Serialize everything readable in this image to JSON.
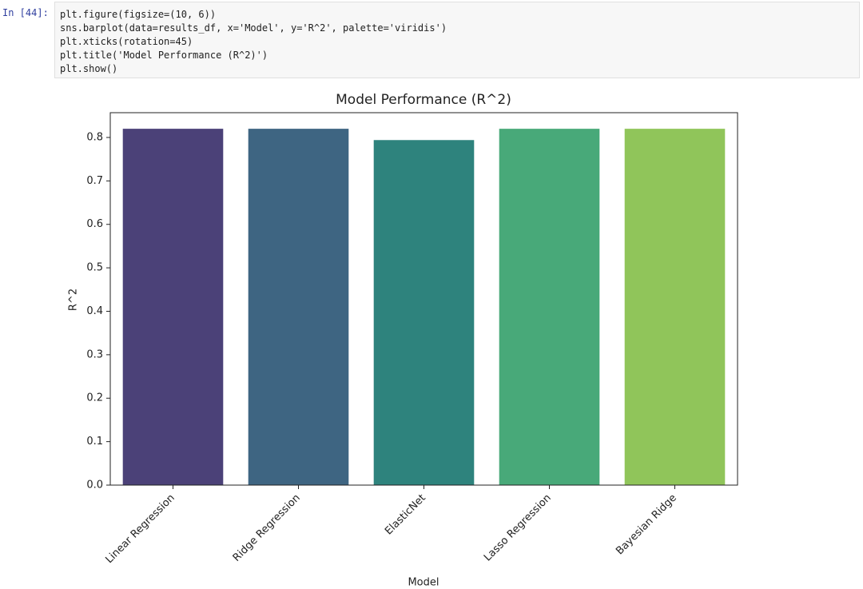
{
  "cell": {
    "prompt": "In [44]:",
    "code": [
      "plt.figure(figsize=(10, 6))",
      "sns.barplot(data=results_df, x='Model', y='R^2', palette='viridis')",
      "plt.xticks(rotation=45)",
      "plt.title('Model Performance (R^2)')",
      "plt.show()"
    ]
  },
  "chart_data": {
    "type": "bar",
    "title": "Model Performance (R^2)",
    "x_label": "Model",
    "y_label": "R^2",
    "categories": [
      "Linear Regression",
      "Ridge Regression",
      "ElasticNet",
      "Lasso Regression",
      "Bayesian Ridge"
    ],
    "values": [
      0.82,
      0.82,
      0.794,
      0.82,
      0.82
    ],
    "colors": [
      "#4b4178",
      "#3e6582",
      "#2e837d",
      "#48a979",
      "#90c55a"
    ],
    "ylim": [
      0,
      0.857
    ],
    "yticks": [
      {
        "value": 0,
        "label": "0.0"
      },
      0.1,
      0.2,
      0.3,
      0.4,
      0.5,
      0.6,
      0.7,
      0.8
    ],
    "grid": false
  }
}
